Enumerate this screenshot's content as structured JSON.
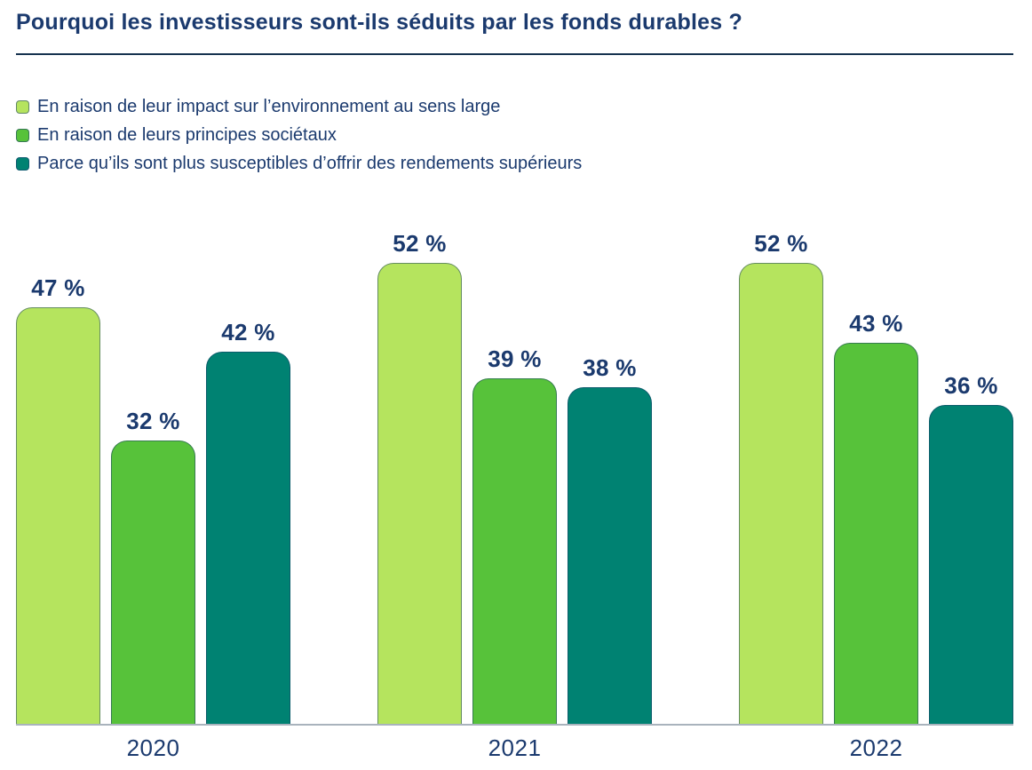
{
  "title": "Pourquoi les investisseurs sont-ils séduits par les fonds durables ?",
  "colors": {
    "text_navy": "#1b3a6e",
    "divider_navy": "#16324f",
    "baseline_gray": "#a9b3bd",
    "series_light_green": "#b5e45e",
    "series_medium_green": "#57c23a",
    "series_teal": "#008272"
  },
  "chart_data": {
    "type": "bar",
    "title": "Pourquoi les investisseurs sont-ils séduits par les fonds durables ?",
    "categories": [
      "2020",
      "2021",
      "2022"
    ],
    "series": [
      {
        "name": "En raison de leur impact sur l’environnement au sens large",
        "color": "#b5e45e",
        "values": [
          47,
          52,
          52
        ],
        "display": [
          "47 %",
          "52 %",
          "52 %"
        ]
      },
      {
        "name": "En raison de leurs principes sociétaux",
        "color": "#57c23a",
        "values": [
          32,
          39,
          43
        ],
        "display": [
          "32 %",
          "39 %",
          "43 %"
        ]
      },
      {
        "name": "Parce qu’ils sont plus susceptibles d’offrir des rendements supérieurs",
        "color": "#008272",
        "values": [
          42,
          38,
          36
        ],
        "display": [
          "42 %",
          "38 %",
          "36 %"
        ]
      }
    ],
    "value_suffix": " %",
    "xlabel": "",
    "ylabel": "",
    "ylim": [
      0,
      56
    ],
    "grid": false,
    "legend_position": "top-left",
    "value_labels": "above-bars"
  }
}
